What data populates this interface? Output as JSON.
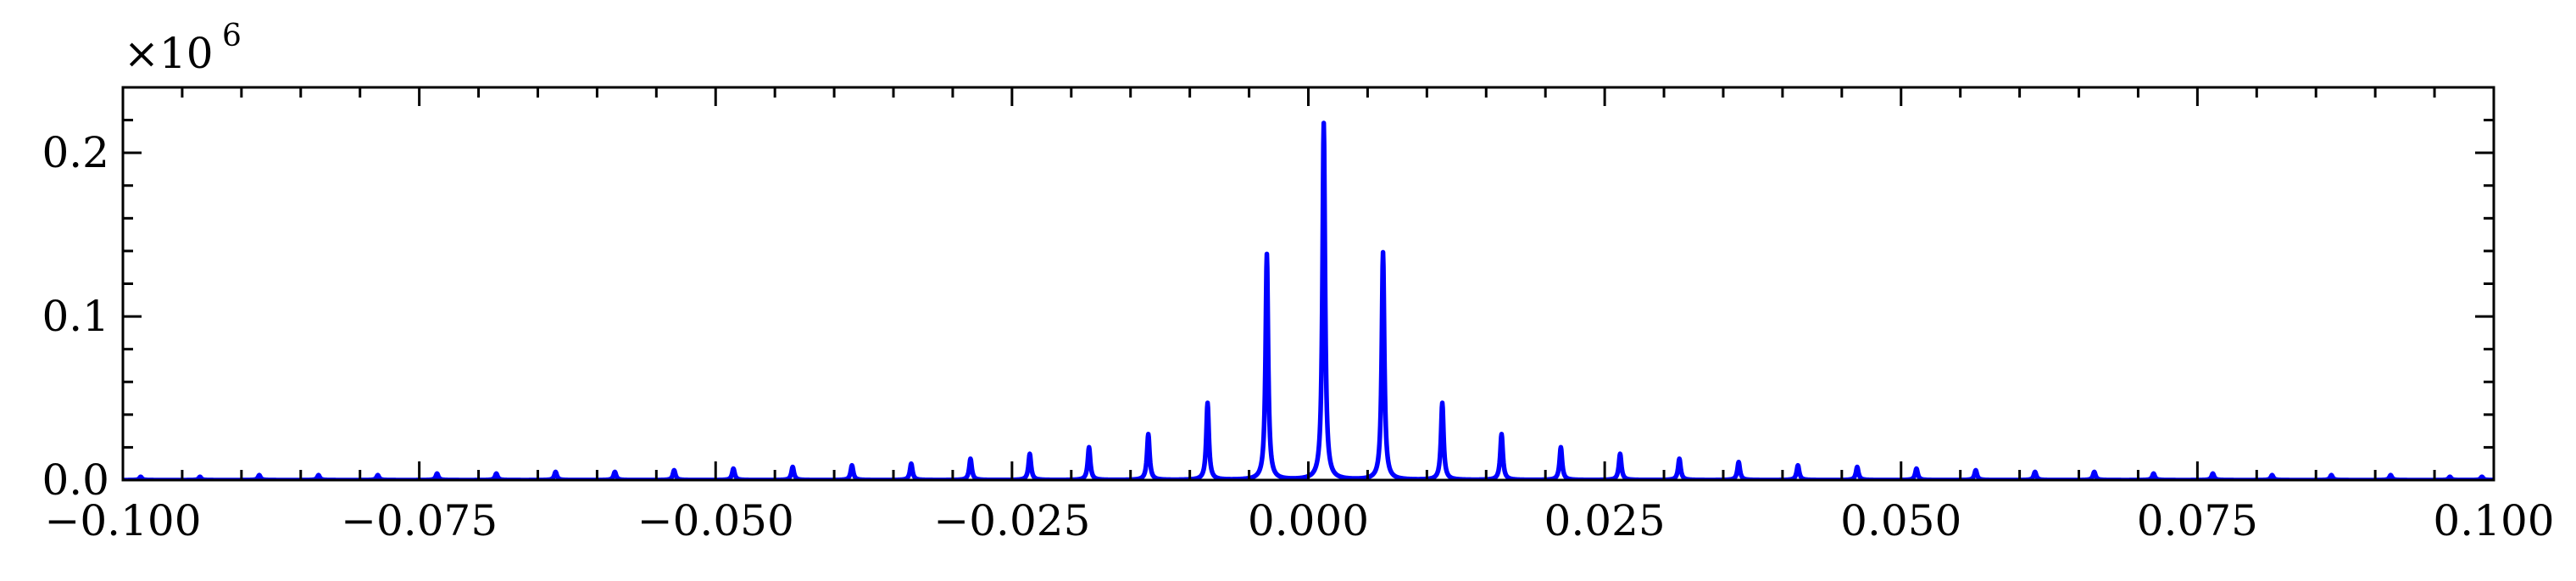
{
  "chart_data": {
    "type": "line",
    "title": "",
    "xlabel": "",
    "ylabel": "",
    "y_multiplier": {
      "base": "×10",
      "exponent": "6"
    },
    "xlim": [
      -0.1,
      0.1
    ],
    "ylim": [
      0,
      0.24
    ],
    "x_ticks": [
      -0.1,
      -0.075,
      -0.05,
      -0.025,
      0.0,
      0.025,
      0.05,
      0.075,
      0.1
    ],
    "x_tick_labels": [
      "−0.100",
      "−0.075",
      "−0.050",
      "−0.025",
      "0.000",
      "0.025",
      "0.050",
      "0.075",
      "0.100"
    ],
    "y_ticks": [
      0.0,
      0.1,
      0.2
    ],
    "y_tick_labels": [
      "0.0",
      "0.1",
      "0.2"
    ],
    "grid": false,
    "series": [
      {
        "color": "#0000ff",
        "peaks": [
          {
            "x": -0.0985,
            "y": 0.002
          },
          {
            "x": -0.0935,
            "y": 0.002
          },
          {
            "x": -0.0885,
            "y": 0.003
          },
          {
            "x": -0.0835,
            "y": 0.003
          },
          {
            "x": -0.0785,
            "y": 0.003
          },
          {
            "x": -0.0735,
            "y": 0.004
          },
          {
            "x": -0.0685,
            "y": 0.004
          },
          {
            "x": -0.0635,
            "y": 0.005
          },
          {
            "x": -0.0585,
            "y": 0.005
          },
          {
            "x": -0.0535,
            "y": 0.006
          },
          {
            "x": -0.0485,
            "y": 0.007
          },
          {
            "x": -0.0435,
            "y": 0.008
          },
          {
            "x": -0.0385,
            "y": 0.009
          },
          {
            "x": -0.0335,
            "y": 0.01
          },
          {
            "x": -0.0285,
            "y": 0.013
          },
          {
            "x": -0.0235,
            "y": 0.016
          },
          {
            "x": -0.0185,
            "y": 0.02
          },
          {
            "x": -0.0135,
            "y": 0.028
          },
          {
            "x": -0.0085,
            "y": 0.047
          },
          {
            "x": -0.0035,
            "y": 0.138
          },
          {
            "x": 0.0013,
            "y": 0.218
          },
          {
            "x": 0.0063,
            "y": 0.139
          },
          {
            "x": 0.0113,
            "y": 0.047
          },
          {
            "x": 0.0163,
            "y": 0.028
          },
          {
            "x": 0.0213,
            "y": 0.02
          },
          {
            "x": 0.0263,
            "y": 0.016
          },
          {
            "x": 0.0313,
            "y": 0.013
          },
          {
            "x": 0.0363,
            "y": 0.011
          },
          {
            "x": 0.0413,
            "y": 0.009
          },
          {
            "x": 0.0463,
            "y": 0.008
          },
          {
            "x": 0.0513,
            "y": 0.007
          },
          {
            "x": 0.0563,
            "y": 0.006
          },
          {
            "x": 0.0613,
            "y": 0.005
          },
          {
            "x": 0.0663,
            "y": 0.005
          },
          {
            "x": 0.0713,
            "y": 0.004
          },
          {
            "x": 0.0763,
            "y": 0.004
          },
          {
            "x": 0.0813,
            "y": 0.003
          },
          {
            "x": 0.0863,
            "y": 0.003
          },
          {
            "x": 0.0913,
            "y": 0.003
          },
          {
            "x": 0.0963,
            "y": 0.002
          },
          {
            "x": 0.099,
            "y": 0.002
          }
        ]
      }
    ]
  }
}
